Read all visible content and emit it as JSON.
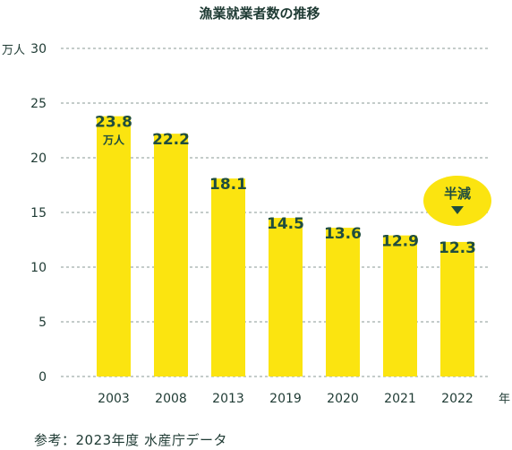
{
  "chart_data": {
    "type": "bar",
    "title": "漁業就業者数の推移",
    "categories": [
      "2003",
      "2008",
      "2013",
      "2019",
      "2020",
      "2021",
      "2022"
    ],
    "values": [
      23.8,
      22.2,
      18.1,
      14.5,
      13.6,
      12.9,
      12.3
    ],
    "value_labels": [
      "23.8",
      "22.2",
      "18.1",
      "14.5",
      "13.6",
      "12.9",
      "12.3"
    ],
    "first_value_unit": "万人",
    "ylabel": "万人",
    "xlabel": "年",
    "ylim": [
      0,
      30
    ],
    "yticks": [
      "0",
      "5",
      "10",
      "15",
      "20",
      "25",
      "30"
    ],
    "grid": true,
    "bar_color": "#fbe410",
    "grid_color": "#8a9a94",
    "annotation": {
      "text": "半減",
      "target_category": "2022",
      "color": "#fbe410",
      "marker_color": "#1f4d3f"
    }
  },
  "source": "参考：2023年度 水産庁データ"
}
